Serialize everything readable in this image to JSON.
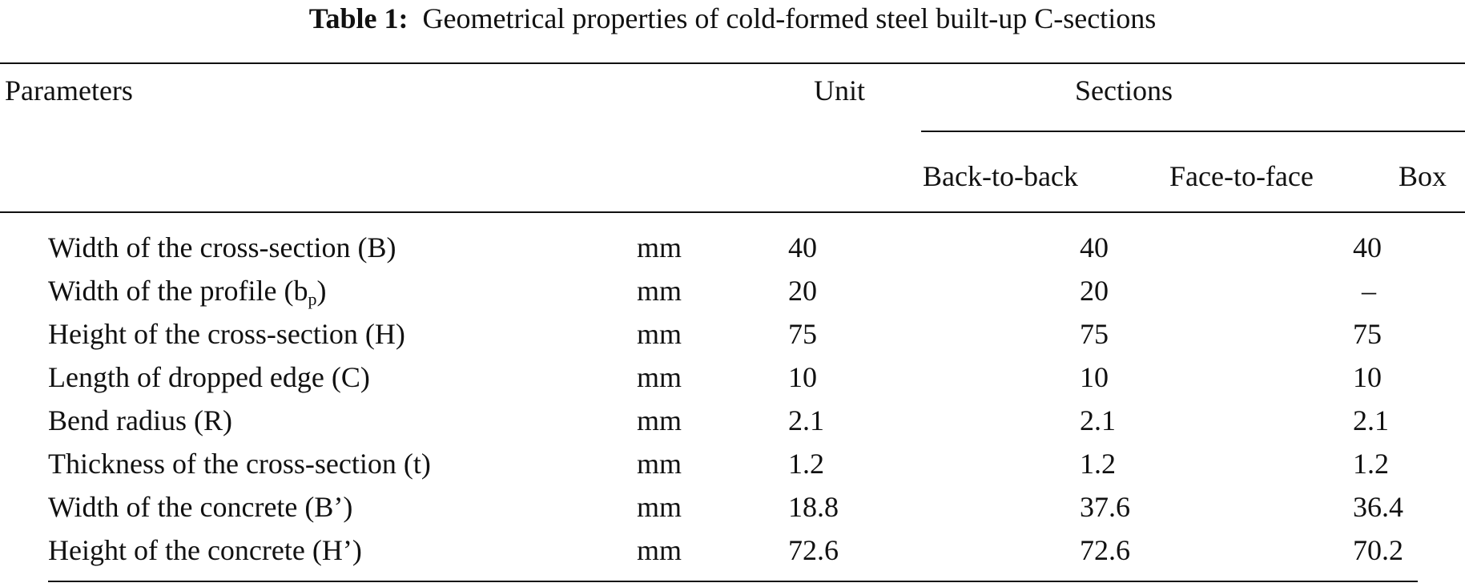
{
  "caption": {
    "label": "Table 1:",
    "text": "Geometrical properties of cold-formed steel built-up C-sections"
  },
  "headers": {
    "parameters": "Parameters",
    "unit": "Unit",
    "sections": "Sections",
    "back_to_back": "Back-to-back",
    "face_to_face": "Face-to-face",
    "box": "Box"
  },
  "rows": [
    {
      "param": "Width of the cross-section (B)",
      "unit": "mm",
      "back_to_back": "40",
      "face_to_face": "40",
      "box": "40"
    },
    {
      "param_main": "Width of the profile (b",
      "param_sub": "p",
      "param_end": ")",
      "unit": "mm",
      "back_to_back": "20",
      "face_to_face": "20",
      "box": "–"
    },
    {
      "param": "Height of the cross-section (H)",
      "unit": "mm",
      "back_to_back": "75",
      "face_to_face": "75",
      "box": "75"
    },
    {
      "param": "Length of dropped edge (C)",
      "unit": "mm",
      "back_to_back": "10",
      "face_to_face": "10",
      "box": "10"
    },
    {
      "param": "Bend radius (R)",
      "unit": "mm",
      "back_to_back": "2.1",
      "face_to_face": "2.1",
      "box": "2.1"
    },
    {
      "param": "Thickness of the cross-section (t)",
      "unit": "mm",
      "back_to_back": "1.2",
      "face_to_face": "1.2",
      "box": "1.2"
    },
    {
      "param": "Width of the concrete (B’)",
      "unit": "mm",
      "back_to_back": "18.8",
      "face_to_face": "37.6",
      "box": "36.4"
    },
    {
      "param": "Height of the concrete (H’)",
      "unit": "mm",
      "back_to_back": "72.6",
      "face_to_face": "72.6",
      "box": "70.2"
    }
  ]
}
